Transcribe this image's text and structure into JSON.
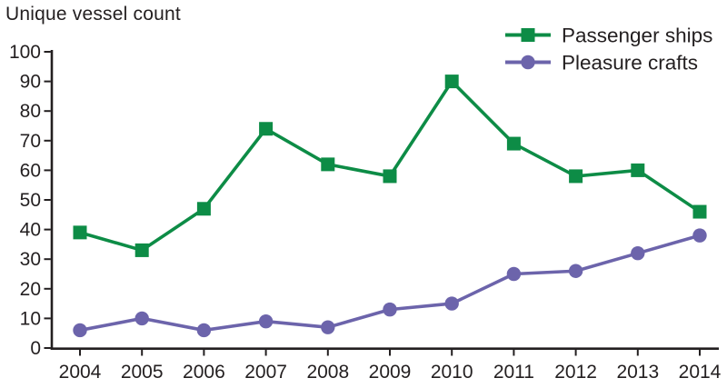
{
  "chart_data": {
    "type": "line",
    "title": "Unique vessel count",
    "x": [
      2004,
      2005,
      2006,
      2007,
      2008,
      2009,
      2010,
      2011,
      2012,
      2013,
      2014
    ],
    "series": [
      {
        "name": "Passenger ships",
        "marker": "square",
        "color": "#0d8c46",
        "values": [
          39,
          33,
          47,
          74,
          62,
          58,
          90,
          69,
          58,
          60,
          46
        ]
      },
      {
        "name": "Pleasure crafts",
        "marker": "circle",
        "color": "#6c64ab",
        "values": [
          6,
          10,
          6,
          9,
          7,
          13,
          15,
          25,
          26,
          32,
          38
        ]
      }
    ],
    "xlabel": "",
    "ylabel": "",
    "ylim": [
      0,
      100
    ],
    "ytick_step": 10,
    "grid": false,
    "legend_position": "top-right",
    "axis_color": "#231f20",
    "text_color": "#231f20"
  }
}
